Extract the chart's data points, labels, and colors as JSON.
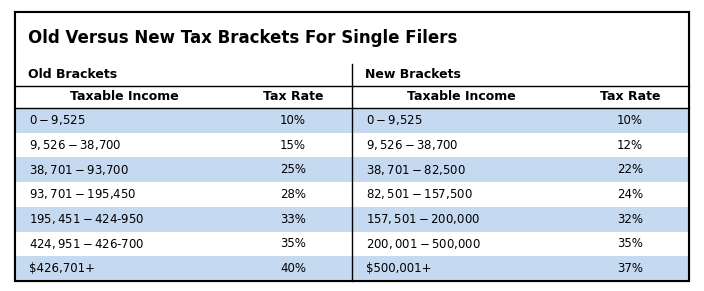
{
  "title": "Old Versus New Tax Brackets For Single Filers",
  "old_label": "Old Brackets",
  "new_label": "New Brackets",
  "col_headers": [
    "Taxable Income",
    "Tax Rate",
    "Taxable Income",
    "Tax Rate"
  ],
  "old_rows": [
    [
      "$0-$9,525",
      "10%"
    ],
    [
      "$9,526-$38,700",
      "15%"
    ],
    [
      "$38,701-$93,700",
      "25%"
    ],
    [
      "$93,701-$195,450",
      "28%"
    ],
    [
      "$195,451-$424-950",
      "33%"
    ],
    [
      "$424,951-$426-700",
      "35%"
    ],
    [
      "$426,701+",
      "40%"
    ]
  ],
  "new_rows": [
    [
      "$0-$9,525",
      "10%"
    ],
    [
      "$9,526-$38,700",
      "12%"
    ],
    [
      "$38,701-$82,500",
      "22%"
    ],
    [
      "$82,501-$157,500",
      "24%"
    ],
    [
      "$157,501-$200,000",
      "32%"
    ],
    [
      "$200,001-$500,000",
      "35%"
    ],
    [
      "$500,001+",
      "37%"
    ]
  ],
  "row_shading": [
    true,
    false,
    true,
    false,
    true,
    false,
    true
  ],
  "shaded_color": "#c5d9f1",
  "unshaded_color": "#ffffff",
  "border_color": "#000000",
  "bg_color": "#ffffff",
  "title_fontsize": 12,
  "label_fontsize": 9,
  "header_fontsize": 9,
  "cell_fontsize": 8.5,
  "fig_width": 7.04,
  "fig_height": 2.91,
  "dpi": 100
}
